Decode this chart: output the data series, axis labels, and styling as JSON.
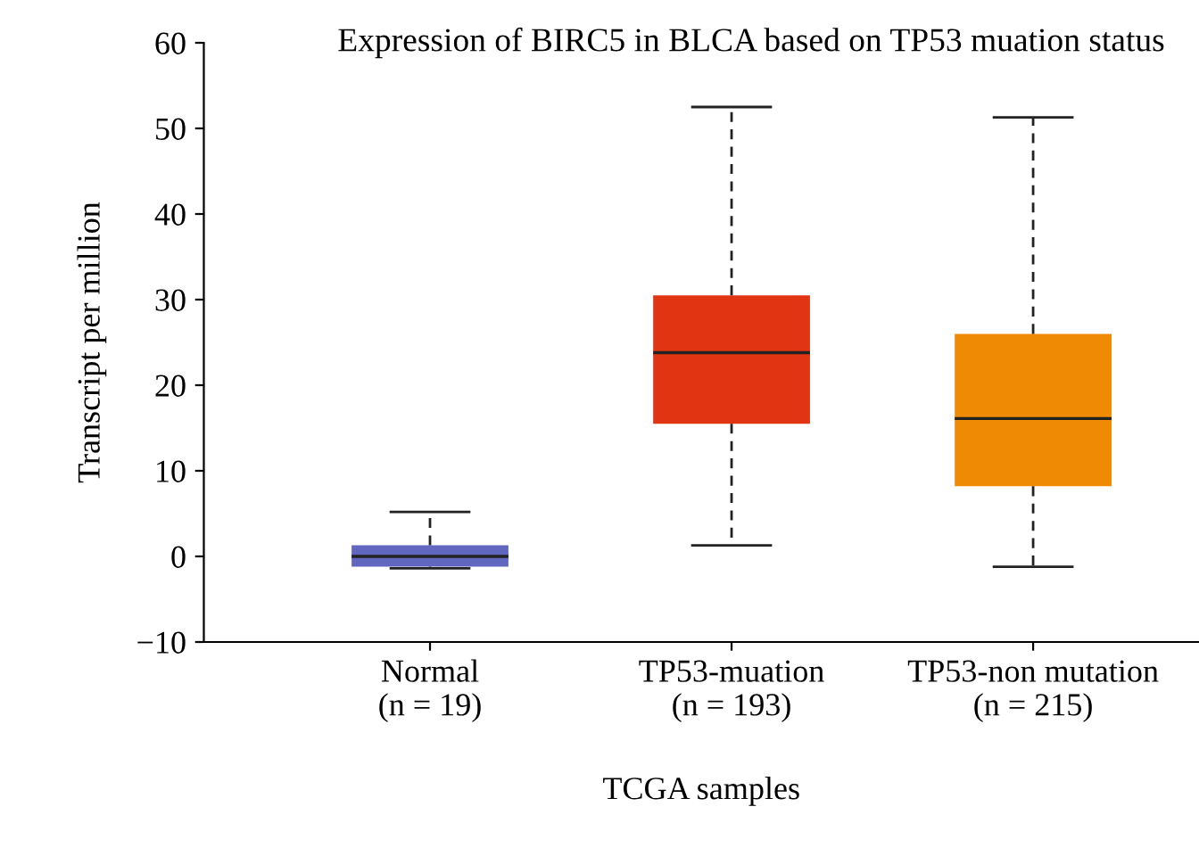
{
  "chart_data": {
    "type": "box",
    "title": "Expression of BIRC5 in BLCA based on TP53 muation status",
    "xlabel": "TCGA samples",
    "ylabel": "Transcript per million",
    "categories": [
      "Normal\n(n = 19)",
      "TP53-muation\n(n = 193)",
      "TP53-non mutation\n(n = 215)"
    ],
    "colors": [
      "#6166bf",
      "#e03412",
      "#ef8a04"
    ],
    "boxes": [
      {
        "low": -1.4,
        "q1": -1.2,
        "median": 0,
        "q3": 1.3,
        "high": 5.2
      },
      {
        "low": 1.3,
        "q1": 15.5,
        "median": 23.8,
        "q3": 30.5,
        "high": 52.5
      },
      {
        "low": -1.2,
        "q1": 8.2,
        "median": 16.1,
        "q3": 26,
        "high": 51.3
      }
    ],
    "ylim": [
      -10,
      60
    ],
    "yticks": [
      -10,
      0,
      10,
      20,
      30,
      40,
      50,
      60
    ],
    "grid": false,
    "line_style": "dashed"
  }
}
